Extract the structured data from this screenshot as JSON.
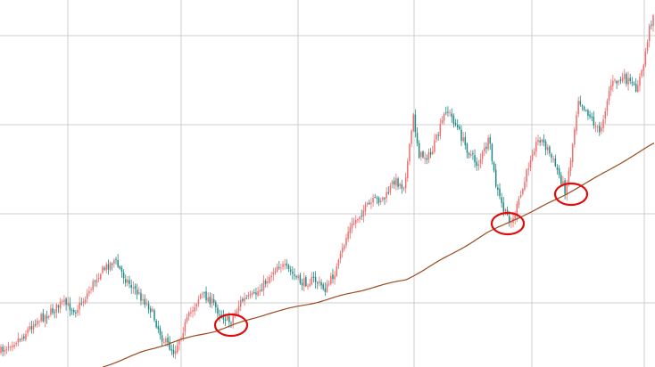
{
  "chart_data": {
    "type": "candlestick",
    "title": "",
    "xlabel": "",
    "ylabel": "",
    "grid": true,
    "colors": {
      "up": "#f26c6c",
      "down": "#1f8a84",
      "moving_average": "#9a4a1e",
      "highlight": "#e00b0b",
      "grid": "#cfcfcf"
    },
    "price_anchors": [
      [
        0,
        395
      ],
      [
        12,
        385
      ],
      [
        25,
        378
      ],
      [
        40,
        360
      ],
      [
        55,
        352
      ],
      [
        70,
        340
      ],
      [
        85,
        348
      ],
      [
        95,
        335
      ],
      [
        110,
        308
      ],
      [
        128,
        292
      ],
      [
        140,
        312
      ],
      [
        155,
        330
      ],
      [
        168,
        345
      ],
      [
        182,
        380
      ],
      [
        195,
        395
      ],
      [
        205,
        370
      ],
      [
        215,
        348
      ],
      [
        225,
        330
      ],
      [
        235,
        336
      ],
      [
        245,
        350
      ],
      [
        258,
        362
      ],
      [
        270,
        338
      ],
      [
        285,
        332
      ],
      [
        298,
        316
      ],
      [
        312,
        296
      ],
      [
        325,
        305
      ],
      [
        338,
        318
      ],
      [
        352,
        314
      ],
      [
        365,
        325
      ],
      [
        378,
        300
      ],
      [
        390,
        260
      ],
      [
        405,
        238
      ],
      [
        420,
        225
      ],
      [
        432,
        222
      ],
      [
        442,
        202
      ],
      [
        452,
        210
      ],
      [
        458,
        175
      ],
      [
        463,
        130
      ],
      [
        470,
        175
      ],
      [
        482,
        175
      ],
      [
        492,
        148
      ],
      [
        500,
        122
      ],
      [
        510,
        138
      ],
      [
        522,
        165
      ],
      [
        535,
        185
      ],
      [
        548,
        158
      ],
      [
        556,
        210
      ],
      [
        565,
        238
      ],
      [
        574,
        250
      ],
      [
        586,
        212
      ],
      [
        596,
        170
      ],
      [
        605,
        155
      ],
      [
        614,
        168
      ],
      [
        624,
        190
      ],
      [
        634,
        215
      ],
      [
        640,
        175
      ],
      [
        648,
        110
      ],
      [
        660,
        128
      ],
      [
        672,
        150
      ],
      [
        684,
        95
      ],
      [
        700,
        88
      ],
      [
        712,
        100
      ],
      [
        720,
        80
      ],
      [
        727,
        35
      ],
      [
        734,
        8
      ]
    ],
    "moving_average_anchors": [
      [
        115,
        412
      ],
      [
        160,
        395
      ],
      [
        200,
        382
      ],
      [
        240,
        372
      ],
      [
        300,
        352
      ],
      [
        360,
        338
      ],
      [
        420,
        322
      ],
      [
        455,
        314
      ],
      [
        480,
        300
      ],
      [
        510,
        283
      ],
      [
        545,
        262
      ],
      [
        575,
        247
      ],
      [
        600,
        236
      ],
      [
        630,
        220
      ],
      [
        660,
        204
      ],
      [
        690,
        186
      ],
      [
        715,
        172
      ],
      [
        734,
        160
      ]
    ],
    "highlighted_touches": [
      {
        "x": 259,
        "y": 365
      },
      {
        "x": 569,
        "y": 251
      },
      {
        "x": 640,
        "y": 218
      }
    ]
  }
}
